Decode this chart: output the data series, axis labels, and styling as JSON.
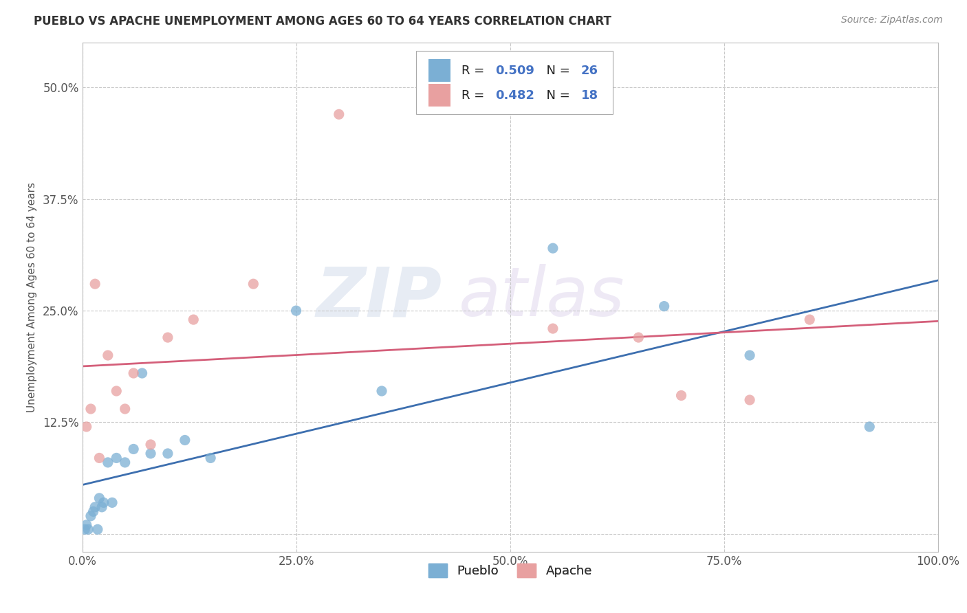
{
  "title": "PUEBLO VS APACHE UNEMPLOYMENT AMONG AGES 60 TO 64 YEARS CORRELATION CHART",
  "source": "Source: ZipAtlas.com",
  "ylabel": "Unemployment Among Ages 60 to 64 years",
  "xlim": [
    0,
    100
  ],
  "ylim": [
    -2,
    55
  ],
  "xticks": [
    0,
    25,
    50,
    75,
    100
  ],
  "xticklabels": [
    "0.0%",
    "25.0%",
    "50.0%",
    "75.0%",
    "100.0%"
  ],
  "yticks": [
    0,
    12.5,
    25.0,
    37.5,
    50.0
  ],
  "yticklabels": [
    "",
    "12.5%",
    "25.0%",
    "37.5%",
    "50.0%"
  ],
  "pueblo_color": "#7bafd4",
  "apache_color": "#e8a0a0",
  "pueblo_line_color": "#3d6faf",
  "apache_line_color": "#d45f7a",
  "pueblo_R": 0.509,
  "pueblo_N": 26,
  "apache_R": 0.482,
  "apache_N": 18,
  "background_color": "#ffffff",
  "grid_color": "#c8c8c8",
  "legend_text_color": "#4472c4",
  "pueblo_x": [
    0.3,
    0.5,
    0.7,
    1.0,
    1.3,
    1.5,
    1.8,
    2.0,
    2.3,
    2.5,
    3.0,
    3.5,
    4.0,
    5.0,
    6.0,
    7.0,
    8.0,
    10.0,
    12.0,
    15.0,
    25.0,
    35.0,
    55.0,
    68.0,
    78.0,
    92.0
  ],
  "pueblo_y": [
    0.5,
    1.0,
    0.5,
    2.0,
    2.5,
    3.0,
    0.5,
    4.0,
    3.0,
    3.5,
    8.0,
    3.5,
    8.5,
    8.0,
    9.5,
    18.0,
    9.0,
    9.0,
    10.5,
    8.5,
    25.0,
    16.0,
    32.0,
    25.5,
    20.0,
    12.0
  ],
  "apache_x": [
    0.5,
    1.0,
    1.5,
    2.0,
    3.0,
    4.0,
    5.0,
    6.0,
    8.0,
    10.0,
    13.0,
    20.0,
    30.0,
    55.0,
    65.0,
    70.0,
    78.0,
    85.0
  ],
  "apache_y": [
    12.0,
    14.0,
    28.0,
    8.5,
    20.0,
    16.0,
    14.0,
    18.0,
    10.0,
    22.0,
    24.0,
    28.0,
    47.0,
    23.0,
    22.0,
    15.5,
    15.0,
    24.0
  ],
  "watermark_zip": "ZIP",
  "watermark_atlas": "atlas"
}
